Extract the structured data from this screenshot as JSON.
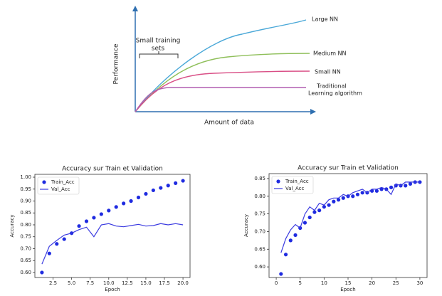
{
  "chart_data": [
    {
      "type": "concept",
      "xlabel": "Amount of data",
      "ylabel": "Performance",
      "annotation": {
        "lines": [
          "Small training",
          "sets"
        ],
        "color": "#2e6fb0"
      },
      "series": [
        {
          "name": [
            "Large NN"
          ],
          "color": "#4aa8d8"
        },
        {
          "name": [
            "Medium NN"
          ],
          "color": "#8fbf5a"
        },
        {
          "name": [
            "Small NN"
          ],
          "color": "#d94f86"
        },
        {
          "name": [
            "Traditional",
            "Learning algorithm"
          ],
          "color": "#b05fb0"
        }
      ]
    },
    {
      "type": "line",
      "title": "Accuracy sur Train et Validation",
      "xlabel": "Epoch",
      "ylabel": "Accuracy",
      "legend": "upper left",
      "x": [
        1,
        2,
        3,
        4,
        5,
        6,
        7,
        8,
        9,
        10,
        11,
        12,
        13,
        14,
        15,
        16,
        17,
        18,
        19,
        20
      ],
      "xlim": [
        0.05,
        20.95
      ],
      "xticks": [
        2.5,
        {
          "value": 5,
          "label": "5.0"
        },
        7.5,
        {
          "value": 10,
          "label": "10.0"
        },
        12.5,
        {
          "value": 15,
          "label": "15.0"
        },
        17.5,
        {
          "value": 20,
          "label": "20.0"
        }
      ],
      "ylim": [
        0.579,
        1.012
      ],
      "yticks": [
        {
          "value": 0.6,
          "label": "0.60"
        },
        0.65,
        {
          "value": 0.7,
          "label": "0.70"
        },
        0.75,
        {
          "value": 0.8,
          "label": "0.80"
        },
        0.85,
        {
          "value": 0.9,
          "label": "0.90"
        },
        0.95,
        {
          "value": 1,
          "label": "1.00"
        }
      ],
      "series": [
        {
          "name": "Train_Acc",
          "kind": "scatter",
          "color": "#1f2be0",
          "values": [
            0.6,
            0.68,
            0.72,
            0.74,
            0.765,
            0.795,
            0.815,
            0.83,
            0.845,
            0.86,
            0.875,
            0.89,
            0.9,
            0.915,
            0.93,
            0.945,
            0.955,
            0.965,
            0.975,
            0.985
          ]
        },
        {
          "name": "Val_Acc",
          "kind": "line",
          "color": "#3a3ae0",
          "values": [
            0.635,
            0.71,
            0.735,
            0.757,
            0.765,
            0.78,
            0.79,
            0.75,
            0.8,
            0.805,
            0.795,
            0.792,
            0.797,
            0.802,
            0.795,
            0.797,
            0.805,
            0.8,
            0.805,
            0.8
          ]
        }
      ]
    },
    {
      "type": "line",
      "title": "Accuracy sur Train et Validation",
      "xlabel": "Epoch",
      "ylabel": "Accuracy",
      "legend": "upper left",
      "x": [
        1,
        2,
        3,
        4,
        5,
        6,
        7,
        8,
        9,
        10,
        11,
        12,
        13,
        14,
        15,
        16,
        17,
        18,
        19,
        20,
        21,
        22,
        23,
        24,
        25,
        26,
        27,
        28,
        29,
        30
      ],
      "xlim": [
        -1.5,
        31.5
      ],
      "xticks": [
        0,
        5,
        10,
        15,
        20,
        25,
        30
      ],
      "ylim": [
        0.57,
        0.864
      ],
      "yticks": [
        {
          "value": 0.6,
          "label": "0.60"
        },
        0.65,
        {
          "value": 0.7,
          "label": "0.70"
        },
        0.75,
        {
          "value": 0.8,
          "label": "0.80"
        },
        0.85
      ],
      "series": [
        {
          "name": "Train_Acc",
          "kind": "scatter",
          "color": "#1f2be0",
          "values": [
            0.58,
            0.635,
            0.675,
            0.69,
            0.71,
            0.725,
            0.74,
            0.755,
            0.76,
            0.77,
            0.775,
            0.785,
            0.79,
            0.795,
            0.8,
            0.8,
            0.805,
            0.81,
            0.81,
            0.815,
            0.815,
            0.82,
            0.82,
            0.825,
            0.83,
            0.83,
            0.83,
            0.835,
            0.84,
            0.84
          ]
        },
        {
          "name": "Val_Acc",
          "kind": "line",
          "color": "#3a3ae0",
          "values": [
            0.64,
            0.68,
            0.705,
            0.72,
            0.71,
            0.75,
            0.77,
            0.76,
            0.78,
            0.775,
            0.79,
            0.795,
            0.795,
            0.805,
            0.8,
            0.81,
            0.815,
            0.82,
            0.81,
            0.82,
            0.82,
            0.825,
            0.82,
            0.805,
            0.835,
            0.83,
            0.84,
            0.84,
            0.84,
            0.84
          ]
        }
      ]
    }
  ]
}
